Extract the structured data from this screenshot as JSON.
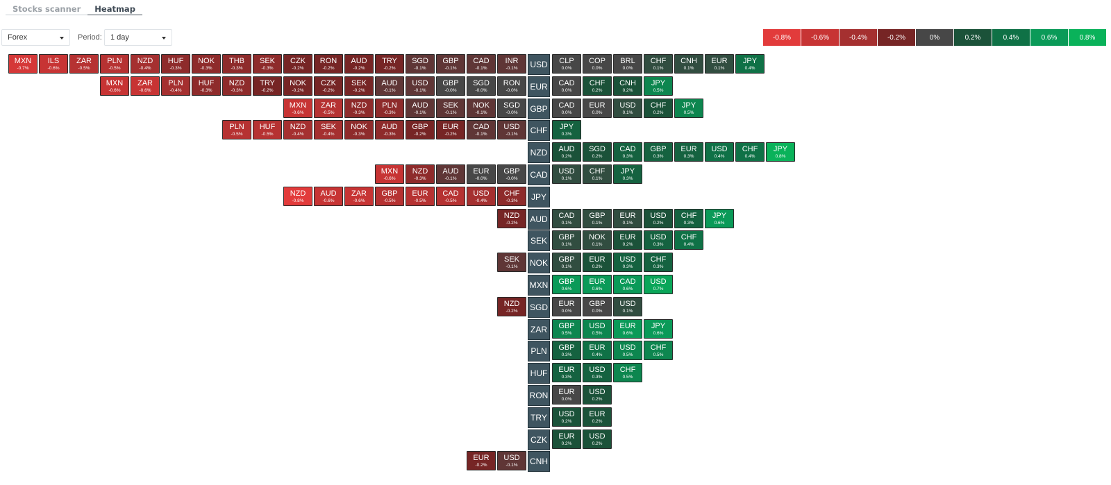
{
  "tabs": [
    {
      "label": "Stocks scanner",
      "active": false
    },
    {
      "label": "Heatmap",
      "active": true
    }
  ],
  "market_select": {
    "value": "Forex"
  },
  "period": {
    "label": "Period:",
    "value": "1 day"
  },
  "legend": [
    {
      "label": "-0.8%",
      "color": "#e23b3b"
    },
    {
      "label": "-0.6%",
      "color": "#c73434"
    },
    {
      "label": "-0.4%",
      "color": "#a53030"
    },
    {
      "label": "-0.2%",
      "color": "#762525"
    },
    {
      "label": "0%",
      "color": "#474747"
    },
    {
      "label": "0.2%",
      "color": "#1b5239"
    },
    {
      "label": "0.4%",
      "color": "#0f7146"
    },
    {
      "label": "0.6%",
      "color": "#0a9a58"
    },
    {
      "label": "0.8%",
      "color": "#0ab25a"
    }
  ],
  "heatmap_rows": [
    {
      "base": "USD",
      "left": [
        [
          "MXN",
          "-0.7%"
        ],
        [
          "ILS",
          "-0.6%"
        ],
        [
          "ZAR",
          "-0.5%"
        ],
        [
          "PLN",
          "-0.5%"
        ],
        [
          "NZD",
          "-0.4%"
        ],
        [
          "HUF",
          "-0.3%"
        ],
        [
          "NOK",
          "-0.3%"
        ],
        [
          "THB",
          "-0.3%"
        ],
        [
          "SEK",
          "-0.3%"
        ],
        [
          "CZK",
          "-0.2%"
        ],
        [
          "RON",
          "-0.2%"
        ],
        [
          "AUD",
          "-0.2%"
        ],
        [
          "TRY",
          "-0.2%"
        ],
        [
          "SGD",
          "-0.1%"
        ],
        [
          "GBP",
          "-0.1%"
        ],
        [
          "CAD",
          "-0.1%"
        ],
        [
          "INR",
          "-0.1%"
        ]
      ],
      "right": [
        [
          "CLP",
          "0.0%"
        ],
        [
          "COP",
          "0.0%"
        ],
        [
          "BRL",
          "0.0%"
        ],
        [
          "CHF",
          "0.1%"
        ],
        [
          "CNH",
          "0.1%"
        ],
        [
          "EUR",
          "0.1%"
        ],
        [
          "JPY",
          "0.4%"
        ]
      ]
    },
    {
      "base": "EUR",
      "left": [
        [
          "MXN",
          "-0.6%"
        ],
        [
          "ZAR",
          "-0.6%"
        ],
        [
          "PLN",
          "-0.4%"
        ],
        [
          "HUF",
          "-0.3%"
        ],
        [
          "NZD",
          "-0.3%"
        ],
        [
          "TRY",
          "-0.2%"
        ],
        [
          "NOK",
          "-0.2%"
        ],
        [
          "CZK",
          "-0.2%"
        ],
        [
          "SEK",
          "-0.2%"
        ],
        [
          "AUD",
          "-0.1%"
        ],
        [
          "USD",
          "-0.1%"
        ],
        [
          "GBP",
          "-0.0%"
        ],
        [
          "SGD",
          "-0.0%"
        ],
        [
          "RON",
          "-0.0%"
        ]
      ],
      "right": [
        [
          "CAD",
          "0.0%"
        ],
        [
          "CHF",
          "0.2%"
        ],
        [
          "CNH",
          "0.2%"
        ],
        [
          "JPY",
          "0.5%"
        ]
      ]
    },
    {
      "base": "GBP",
      "left": [
        [
          "MXN",
          "-0.6%"
        ],
        [
          "ZAR",
          "-0.5%"
        ],
        [
          "NZD",
          "-0.3%"
        ],
        [
          "PLN",
          "-0.3%"
        ],
        [
          "AUD",
          "-0.1%"
        ],
        [
          "SEK",
          "-0.1%"
        ],
        [
          "NOK",
          "-0.1%"
        ],
        [
          "SGD",
          "-0.0%"
        ]
      ],
      "right": [
        [
          "CAD",
          "0.0%"
        ],
        [
          "EUR",
          "0.0%"
        ],
        [
          "USD",
          "0.1%"
        ],
        [
          "CHF",
          "0.2%"
        ],
        [
          "JPY",
          "0.5%"
        ]
      ]
    },
    {
      "base": "CHF",
      "left": [
        [
          "PLN",
          "-0.5%"
        ],
        [
          "HUF",
          "-0.5%"
        ],
        [
          "NZD",
          "-0.4%"
        ],
        [
          "SEK",
          "-0.4%"
        ],
        [
          "NOK",
          "-0.3%"
        ],
        [
          "AUD",
          "-0.3%"
        ],
        [
          "GBP",
          "-0.2%"
        ],
        [
          "EUR",
          "-0.2%"
        ],
        [
          "CAD",
          "-0.1%"
        ],
        [
          "USD",
          "-0.1%"
        ]
      ],
      "right": [
        [
          "JPY",
          "0.3%"
        ]
      ]
    },
    {
      "base": "NZD",
      "left": [],
      "right": [
        [
          "AUD",
          "0.2%"
        ],
        [
          "SGD",
          "0.2%"
        ],
        [
          "CAD",
          "0.3%"
        ],
        [
          "GBP",
          "0.3%"
        ],
        [
          "EUR",
          "0.3%"
        ],
        [
          "USD",
          "0.4%"
        ],
        [
          "CHF",
          "0.4%"
        ],
        [
          "JPY",
          "0.8%"
        ]
      ]
    },
    {
      "base": "CAD",
      "left": [
        [
          "MXN",
          "-0.6%"
        ],
        [
          "NZD",
          "-0.3%"
        ],
        [
          "AUD",
          "-0.1%"
        ],
        [
          "EUR",
          "-0.0%"
        ],
        [
          "GBP",
          "-0.0%"
        ]
      ],
      "right": [
        [
          "USD",
          "0.1%"
        ],
        [
          "CHF",
          "0.1%"
        ],
        [
          "JPY",
          "0.3%"
        ]
      ]
    },
    {
      "base": "JPY",
      "left": [
        [
          "NZD",
          "-0.8%"
        ],
        [
          "AUD",
          "-0.6%"
        ],
        [
          "ZAR",
          "-0.6%"
        ],
        [
          "GBP",
          "-0.5%"
        ],
        [
          "EUR",
          "-0.5%"
        ],
        [
          "CAD",
          "-0.5%"
        ],
        [
          "USD",
          "-0.4%"
        ],
        [
          "CHF",
          "-0.3%"
        ]
      ],
      "right": []
    },
    {
      "base": "AUD",
      "left": [
        [
          "NZD",
          "-0.2%"
        ]
      ],
      "right": [
        [
          "CAD",
          "0.1%"
        ],
        [
          "GBP",
          "0.1%"
        ],
        [
          "EUR",
          "0.1%"
        ],
        [
          "USD",
          "0.2%"
        ],
        [
          "CHF",
          "0.3%"
        ],
        [
          "JPY",
          "0.6%"
        ]
      ]
    },
    {
      "base": "SEK",
      "left": [],
      "right": [
        [
          "GBP",
          "0.1%"
        ],
        [
          "NOK",
          "0.1%"
        ],
        [
          "EUR",
          "0.2%"
        ],
        [
          "USD",
          "0.3%"
        ],
        [
          "CHF",
          "0.4%"
        ]
      ]
    },
    {
      "base": "NOK",
      "left": [
        [
          "SEK",
          "-0.1%"
        ]
      ],
      "right": [
        [
          "GBP",
          "0.1%"
        ],
        [
          "EUR",
          "0.2%"
        ],
        [
          "USD",
          "0.3%"
        ],
        [
          "CHF",
          "0.3%"
        ]
      ]
    },
    {
      "base": "MXN",
      "left": [],
      "right": [
        [
          "GBP",
          "0.6%"
        ],
        [
          "EUR",
          "0.6%"
        ],
        [
          "CAD",
          "0.6%"
        ],
        [
          "USD",
          "0.7%"
        ]
      ]
    },
    {
      "base": "SGD",
      "left": [
        [
          "NZD",
          "-0.2%"
        ]
      ],
      "right": [
        [
          "EUR",
          "0.0%"
        ],
        [
          "GBP",
          "0.0%"
        ],
        [
          "USD",
          "0.1%"
        ]
      ]
    },
    {
      "base": "ZAR",
      "left": [],
      "right": [
        [
          "GBP",
          "0.5%"
        ],
        [
          "USD",
          "0.5%"
        ],
        [
          "EUR",
          "0.6%"
        ],
        [
          "JPY",
          "0.6%"
        ]
      ]
    },
    {
      "base": "PLN",
      "left": [],
      "right": [
        [
          "GBP",
          "0.3%"
        ],
        [
          "EUR",
          "0.4%"
        ],
        [
          "USD",
          "0.5%"
        ],
        [
          "CHF",
          "0.5%"
        ]
      ]
    },
    {
      "base": "HUF",
      "left": [],
      "right": [
        [
          "EUR",
          "0.3%"
        ],
        [
          "USD",
          "0.3%"
        ],
        [
          "CHF",
          "0.5%"
        ]
      ]
    },
    {
      "base": "RON",
      "left": [],
      "right": [
        [
          "EUR",
          "0.0%"
        ],
        [
          "USD",
          "0.2%"
        ]
      ]
    },
    {
      "base": "TRY",
      "left": [],
      "right": [
        [
          "USD",
          "0.2%"
        ],
        [
          "EUR",
          "0.2%"
        ]
      ]
    },
    {
      "base": "CZK",
      "left": [],
      "right": [
        [
          "EUR",
          "0.2%"
        ],
        [
          "USD",
          "0.2%"
        ]
      ]
    },
    {
      "base": "CNH",
      "left": [
        [
          "EUR",
          "-0.2%"
        ],
        [
          "USD",
          "-0.1%"
        ]
      ],
      "right": []
    }
  ]
}
